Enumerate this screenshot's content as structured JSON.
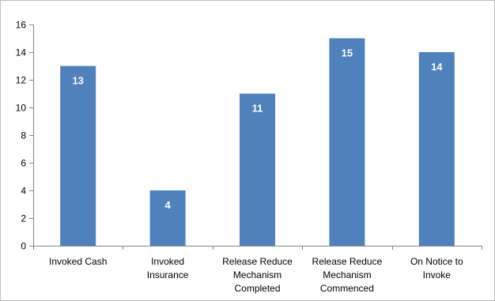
{
  "chart_data": {
    "type": "bar",
    "categories": [
      [
        "Invoked Cash"
      ],
      [
        "Invoked",
        "Insurance"
      ],
      [
        "Release Reduce",
        "Mechanism",
        "Completed"
      ],
      [
        "Release Reduce",
        "Mechanism",
        "Commenced"
      ],
      [
        "On Notice to",
        "Invoke"
      ]
    ],
    "values": [
      13,
      4,
      11,
      15,
      14
    ],
    "data_labels": [
      "13",
      "4",
      "11",
      "15",
      "14"
    ],
    "ylim": [
      0,
      16
    ],
    "yticks": [
      0,
      2,
      4,
      6,
      8,
      10,
      12,
      14,
      16
    ],
    "title": "",
    "xlabel": "",
    "ylabel": "",
    "grid": false,
    "legend": "none",
    "bar_color": "#4f81bd",
    "axis_color": "#868686"
  }
}
